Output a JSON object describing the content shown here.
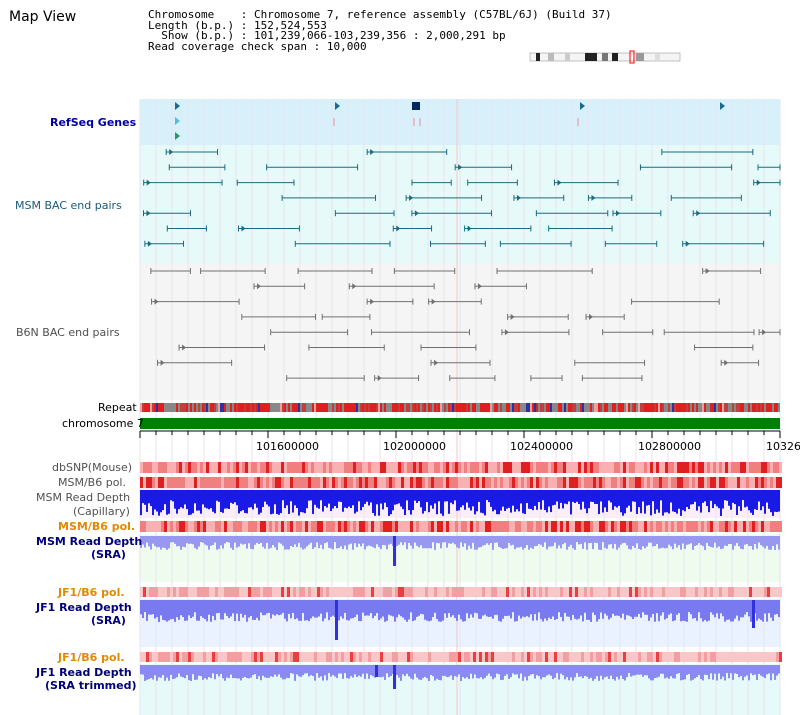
{
  "window": {
    "title": "Map View"
  },
  "info": {
    "chromosome_key": "Chromosome",
    "chromosome_val": "Chromosome 7, reference assembly (C57BL/6J) (Build 37)",
    "length_key": "Length (b.p.)",
    "length_val": "152,524,553",
    "show_key": "Show (b.p.)",
    "show_val": "101,239,066-103,239,356 : 2,000,291 bp",
    "span_key": "Read coverage check span",
    "span_val": "10,000"
  },
  "tracks": {
    "refseq": "RefSeq Genes",
    "msm_bac": "MSM BAC end pairs",
    "b6n_bac": "B6N BAC end pairs",
    "repeat": "Repeat",
    "chromosome": "chromosome 7",
    "dbsnp": "dbSNP(Mouse)",
    "msm_b6_pol": "MSM/B6 pol.",
    "msm_read_depth_cap_1": "MSM Read Depth",
    "msm_read_depth_cap_2": "(Capillary)",
    "msm_b6_pol2": "MSM/B6 pol.",
    "msm_read_depth_sra_1": "MSM Read Depth",
    "msm_read_depth_sra_2": "(SRA)",
    "jf1_b6_pol": "JF1/B6 pol.",
    "jf1_read_depth_sra_1": "JF1 Read Depth",
    "jf1_read_depth_sra_2": "(SRA)",
    "jf1_b6_pol2": "JF1/B6 pol.",
    "jf1_read_depth_trim_1": "JF1 Read Depth",
    "jf1_read_depth_trim_2": "(SRA trimmed)"
  },
  "axis": {
    "ticks": [
      "101600000",
      "102000000",
      "102400000",
      "102800000",
      "10326"
    ]
  },
  "colors": {
    "refseq_bg": "#d7f0fa",
    "msm_bac_bg": "#e6fafa",
    "b6n_bg": "#f5f5f5",
    "chrom": "#008000",
    "depth_blue": "#1a1ae6",
    "depth_light": "#8080f0"
  }
}
